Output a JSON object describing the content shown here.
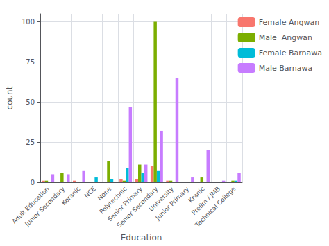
{
  "chart_data": {
    "type": "bar",
    "xlabel": "Education",
    "ylabel": "count",
    "categories": [
      "Adult Education",
      "Junior Secondary",
      "Koranic",
      "NCE",
      "None",
      "Polytechnic",
      "Senior Primary",
      "Senior Secondary",
      "University",
      "Junior Primary",
      "Kranic",
      "Prelim / JMB",
      "Technical College"
    ],
    "series": [
      {
        "name": "Female Angwan",
        "color": "#F8766D",
        "values": [
          1,
          0,
          1,
          0,
          0,
          2,
          2,
          10,
          1,
          0,
          0,
          0,
          0
        ]
      },
      {
        "name": "Male  Angwan",
        "color": "#7CAE00",
        "values": [
          1,
          6,
          0,
          0,
          13,
          1,
          11,
          100,
          1,
          0,
          3,
          0,
          1
        ]
      },
      {
        "name": "Female Barnawa",
        "color": "#00BCD8",
        "values": [
          0,
          0,
          0,
          3,
          2,
          9,
          6,
          7,
          0,
          0,
          0,
          0,
          1
        ]
      },
      {
        "name": "Male Barnawa",
        "color": "#C77CFF",
        "values": [
          5,
          5,
          7,
          0,
          0,
          47,
          11,
          32,
          65,
          3,
          20,
          1,
          6
        ]
      }
    ],
    "ylim": [
      0,
      105
    ],
    "yticks": [
      0,
      25,
      50,
      75,
      100
    ],
    "grid": true,
    "legend": "upper right"
  }
}
